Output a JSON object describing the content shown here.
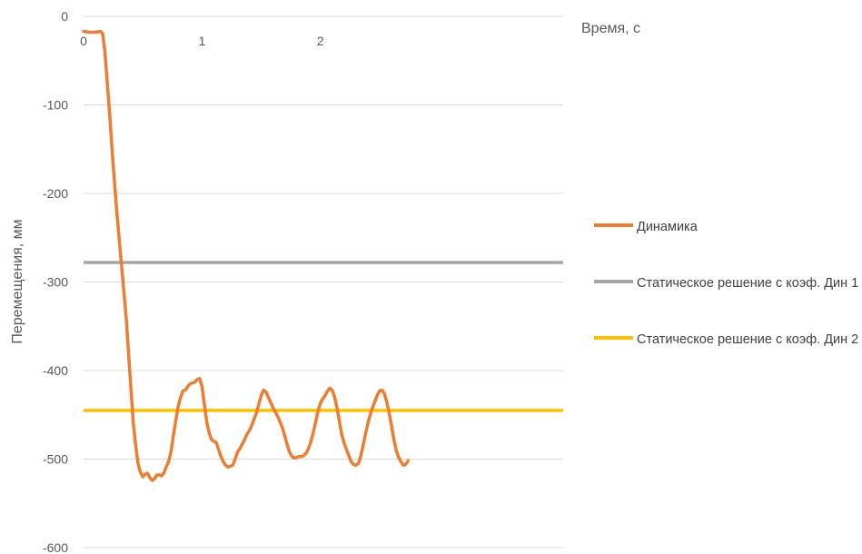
{
  "chart_data": {
    "type": "line",
    "xlabel": "Время, с",
    "ylabel": "Перемещения, мм",
    "xlim": [
      0,
      4.05
    ],
    "ylim": [
      -600,
      0
    ],
    "x_ticks": [
      0,
      1,
      2
    ],
    "y_ticks": [
      0,
      -100,
      -200,
      -300,
      -400,
      -500,
      -600
    ],
    "grid": "horizontal",
    "legend_position": "right",
    "series": [
      {
        "name": "Динамика",
        "color": "#ED7D31",
        "points": [
          [
            0.0,
            -17
          ],
          [
            0.05,
            -18
          ],
          [
            0.1,
            -18
          ],
          [
            0.14,
            -17
          ],
          [
            0.16,
            -19
          ],
          [
            0.18,
            -40
          ],
          [
            0.2,
            -75
          ],
          [
            0.22,
            -110
          ],
          [
            0.24,
            -150
          ],
          [
            0.26,
            -185
          ],
          [
            0.28,
            -220
          ],
          [
            0.3,
            -250
          ],
          [
            0.32,
            -280
          ],
          [
            0.34,
            -310
          ],
          [
            0.36,
            -340
          ],
          [
            0.38,
            -380
          ],
          [
            0.4,
            -420
          ],
          [
            0.42,
            -460
          ],
          [
            0.44,
            -485
          ],
          [
            0.46,
            -505
          ],
          [
            0.48,
            -515
          ],
          [
            0.5,
            -520
          ],
          [
            0.52,
            -517
          ],
          [
            0.54,
            -516
          ],
          [
            0.56,
            -521
          ],
          [
            0.58,
            -524
          ],
          [
            0.6,
            -522
          ],
          [
            0.62,
            -518
          ],
          [
            0.64,
            -518
          ],
          [
            0.66,
            -519
          ],
          [
            0.68,
            -515
          ],
          [
            0.7,
            -508
          ],
          [
            0.72,
            -502
          ],
          [
            0.74,
            -490
          ],
          [
            0.76,
            -472
          ],
          [
            0.78,
            -455
          ],
          [
            0.8,
            -440
          ],
          [
            0.82,
            -430
          ],
          [
            0.84,
            -423
          ],
          [
            0.86,
            -422
          ],
          [
            0.88,
            -418
          ],
          [
            0.9,
            -415
          ],
          [
            0.92,
            -414
          ],
          [
            0.94,
            -413
          ],
          [
            0.96,
            -410
          ],
          [
            0.98,
            -409
          ],
          [
            1.0,
            -418
          ],
          [
            1.02,
            -438
          ],
          [
            1.04,
            -458
          ],
          [
            1.06,
            -470
          ],
          [
            1.08,
            -478
          ],
          [
            1.1,
            -480
          ],
          [
            1.12,
            -481
          ],
          [
            1.14,
            -489
          ],
          [
            1.16,
            -497
          ],
          [
            1.18,
            -503
          ],
          [
            1.2,
            -507
          ],
          [
            1.22,
            -509
          ],
          [
            1.24,
            -508
          ],
          [
            1.26,
            -507
          ],
          [
            1.28,
            -500
          ],
          [
            1.3,
            -492
          ],
          [
            1.32,
            -488
          ],
          [
            1.34,
            -483
          ],
          [
            1.36,
            -478
          ],
          [
            1.38,
            -472
          ],
          [
            1.4,
            -468
          ],
          [
            1.42,
            -462
          ],
          [
            1.44,
            -455
          ],
          [
            1.46,
            -448
          ],
          [
            1.48,
            -438
          ],
          [
            1.5,
            -428
          ],
          [
            1.52,
            -422
          ],
          [
            1.54,
            -424
          ],
          [
            1.56,
            -430
          ],
          [
            1.58,
            -436
          ],
          [
            1.6,
            -442
          ],
          [
            1.62,
            -447
          ],
          [
            1.64,
            -452
          ],
          [
            1.66,
            -458
          ],
          [
            1.68,
            -465
          ],
          [
            1.7,
            -474
          ],
          [
            1.72,
            -484
          ],
          [
            1.74,
            -492
          ],
          [
            1.76,
            -497
          ],
          [
            1.78,
            -499
          ],
          [
            1.8,
            -498
          ],
          [
            1.82,
            -497
          ],
          [
            1.84,
            -497
          ],
          [
            1.86,
            -496
          ],
          [
            1.88,
            -493
          ],
          [
            1.9,
            -488
          ],
          [
            1.92,
            -480
          ],
          [
            1.94,
            -470
          ],
          [
            1.96,
            -458
          ],
          [
            1.98,
            -446
          ],
          [
            2.0,
            -437
          ],
          [
            2.02,
            -432
          ],
          [
            2.04,
            -428
          ],
          [
            2.06,
            -423
          ],
          [
            2.08,
            -420
          ],
          [
            2.1,
            -422
          ],
          [
            2.12,
            -430
          ],
          [
            2.14,
            -442
          ],
          [
            2.16,
            -457
          ],
          [
            2.18,
            -472
          ],
          [
            2.2,
            -482
          ],
          [
            2.22,
            -489
          ],
          [
            2.24,
            -496
          ],
          [
            2.26,
            -503
          ],
          [
            2.28,
            -506
          ],
          [
            2.3,
            -507
          ],
          [
            2.32,
            -505
          ],
          [
            2.34,
            -497
          ],
          [
            2.36,
            -485
          ],
          [
            2.38,
            -472
          ],
          [
            2.4,
            -460
          ],
          [
            2.42,
            -450
          ],
          [
            2.44,
            -442
          ],
          [
            2.46,
            -435
          ],
          [
            2.48,
            -428
          ],
          [
            2.5,
            -423
          ],
          [
            2.52,
            -422
          ],
          [
            2.54,
            -426
          ],
          [
            2.56,
            -435
          ],
          [
            2.58,
            -448
          ],
          [
            2.6,
            -462
          ],
          [
            2.62,
            -478
          ],
          [
            2.64,
            -490
          ],
          [
            2.66,
            -498
          ],
          [
            2.68,
            -503
          ],
          [
            2.7,
            -507
          ],
          [
            2.72,
            -506
          ],
          [
            2.74,
            -502
          ]
        ]
      },
      {
        "name": "Статическое решение с коэф. Дин 1",
        "color": "#A5A5A5",
        "y": -278
      },
      {
        "name": "Статическое решение с коэф. Дин 2",
        "color": "#FFC000",
        "y": -445
      }
    ]
  }
}
